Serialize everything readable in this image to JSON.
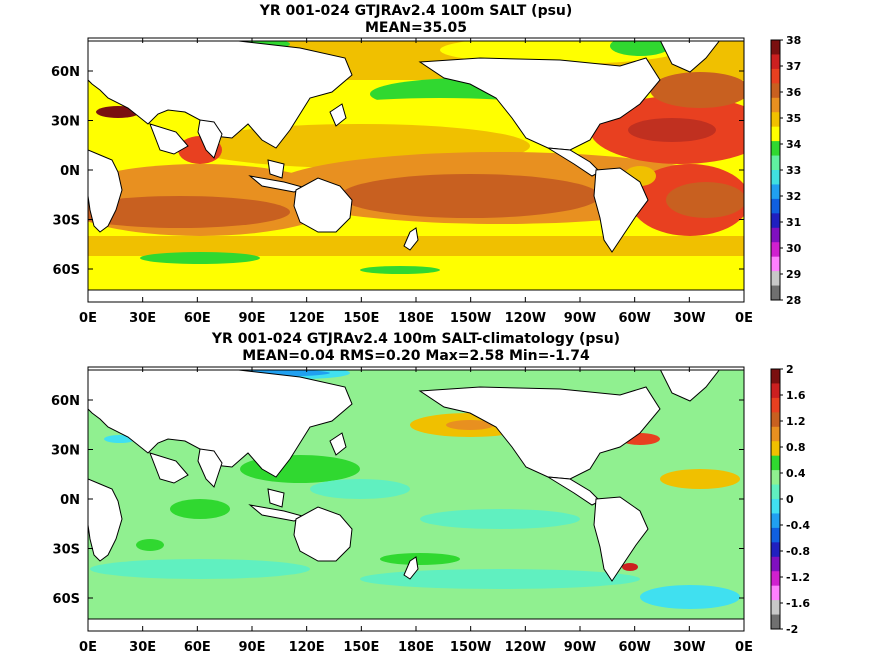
{
  "panels": [
    {
      "title_line1": "YR 001-024 GTJRAv2.4 100m SALT (psu)",
      "title_line2": "MEAN=35.05",
      "lon_labels": [
        "0E",
        "30E",
        "60E",
        "90E",
        "120E",
        "150E",
        "180E",
        "150W",
        "120W",
        "90W",
        "60W",
        "30W",
        "0E"
      ],
      "lat_labels": [
        "60N",
        "30N",
        "0N",
        "30S",
        "60S"
      ],
      "colorbar_labels": [
        "38",
        "37",
        "36",
        "35",
        "34",
        "33",
        "32",
        "31",
        "30",
        "29",
        "28"
      ],
      "colorbar_colors": [
        "#7a1010",
        "#cc2020",
        "#e84020",
        "#c86020",
        "#e89020",
        "#f0c000",
        "#ffff00",
        "#30d830",
        "#60f0a0",
        "#40e0e0",
        "#20a0f0",
        "#1060e0",
        "#2020c0",
        "#8010c0",
        "#d020d0",
        "#ff80ff",
        "#c8c8c8",
        "#707070"
      ]
    },
    {
      "title_line1": "YR 001-024 GTJRAv2.4 100m SALT-climatology (psu)",
      "title_line2": "MEAN=0.04   RMS=0.20   Max=2.58   Min=-1.74",
      "lon_labels": [
        "0E",
        "30E",
        "60E",
        "90E",
        "120E",
        "150E",
        "180E",
        "150W",
        "120W",
        "90W",
        "60W",
        "30W",
        "0E"
      ],
      "lat_labels": [
        "60N",
        "30N",
        "0N",
        "30S",
        "60S"
      ],
      "colorbar_labels": [
        "2",
        "1.6",
        "1.2",
        "0.8",
        "0.4",
        "0",
        "-0.4",
        "-0.8",
        "-1.2",
        "-1.6",
        "-2"
      ],
      "colorbar_colors": [
        "#7a1010",
        "#cc2020",
        "#e84020",
        "#c86020",
        "#e89020",
        "#f0c000",
        "#30d830",
        "#90f090",
        "#60f0c0",
        "#40e0f0",
        "#20a0f0",
        "#1060e0",
        "#2020c0",
        "#8010c0",
        "#d020d0",
        "#ff80ff",
        "#c8c8c8",
        "#707070"
      ]
    }
  ]
}
